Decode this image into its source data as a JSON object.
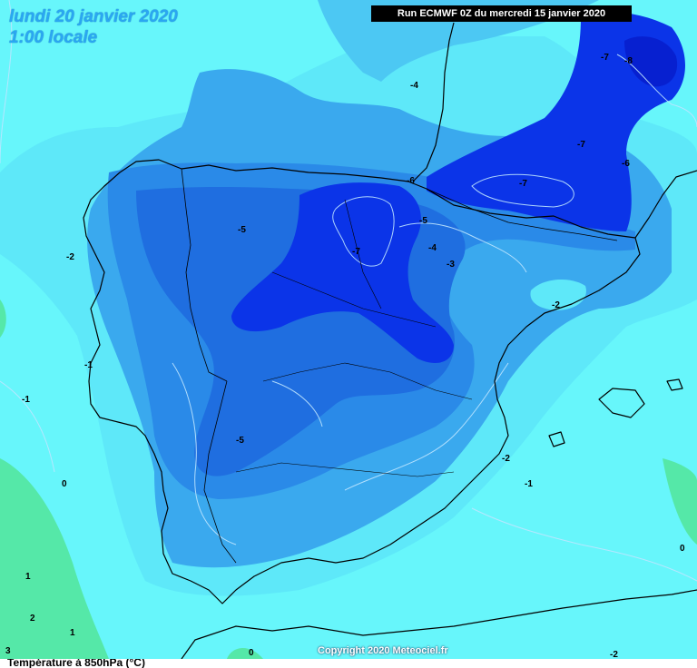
{
  "map": {
    "title_date": "lundi 20 janvier 2020",
    "title_time": "1:00 locale",
    "run_banner": "Run ECMWF 0Z du mercredi 15 janvier 2020",
    "copyright": "Copyright 2020 Meteociel.fr",
    "caption": "Température à 850hPa (°C)",
    "colors": {
      "above_1": "#55e8a8",
      "0_to_1": "#6ff0e6",
      "m1_to_0": "#67f6fb",
      "m2_to_m1": "#5ee8f9",
      "m3_to_m2": "#4cc8f3",
      "m4_to_m3": "#3aa9ee",
      "m5_to_m4": "#2a8ae8",
      "m6_to_m5": "#1f6ee0",
      "below_m6": "#0b34e8",
      "below_m8": "#0720d0",
      "coast": "#000000",
      "isoline": "#bfe6ff"
    },
    "labels": [
      "-7",
      "-8",
      "-4",
      "-7",
      "-6",
      "-6",
      "-7",
      "-5",
      "-7",
      "-5",
      "-4",
      "-3",
      "-2",
      "-2",
      "-1",
      "-1",
      "-5",
      "-2",
      "-1",
      "0",
      "0",
      "1",
      "2",
      "1",
      "3",
      "0",
      "-2"
    ]
  }
}
